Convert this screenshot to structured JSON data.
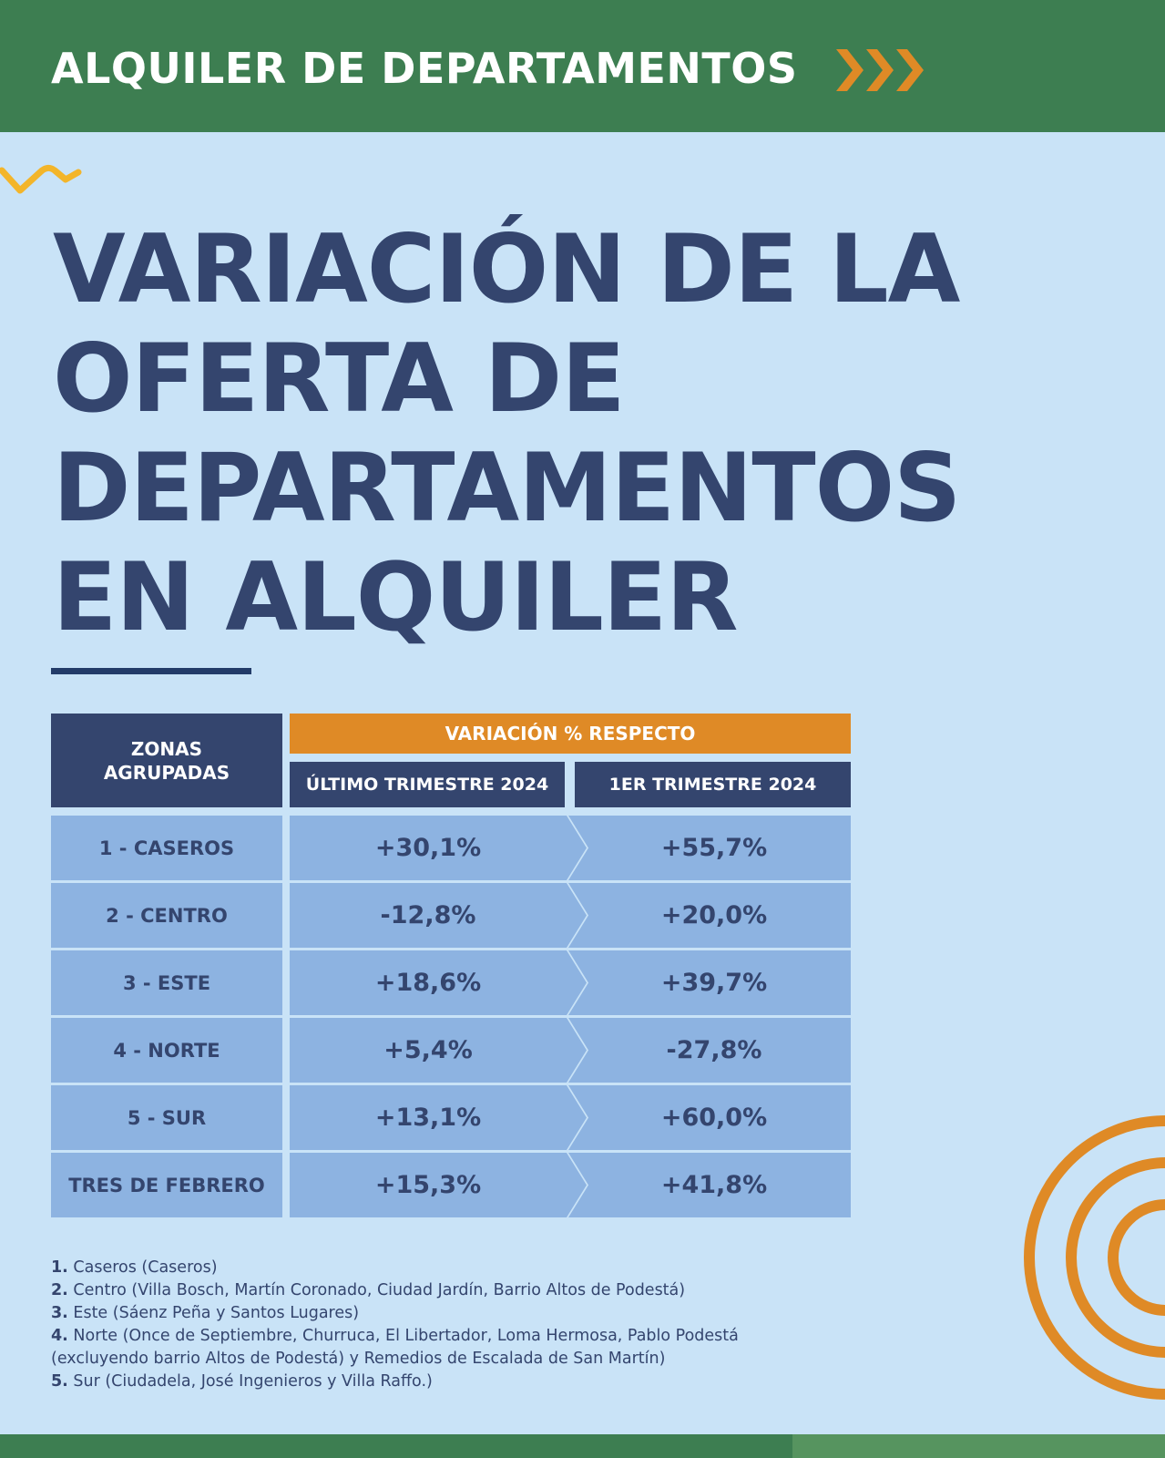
{
  "header": {
    "title": "ALQUILER DE DEPARTAMENTOS"
  },
  "title_lines": [
    "VARIACIÓN DE LA",
    "OFERTA DE",
    "DEPARTAMENTOS",
    "EN ALQUILER"
  ],
  "table": {
    "zone_header": "ZONAS\nAGRUPADAS",
    "group_header": "VARIACIÓN % RESPECTO",
    "col1_header": "ÚLTIMO TRIMESTRE 2024",
    "col2_header": "1ER TRIMESTRE 2024",
    "rows": [
      {
        "zone": "1 - CASEROS",
        "v1": "+30,1%",
        "v2": "+55,7%"
      },
      {
        "zone": "2 - CENTRO",
        "v1": "-12,8%",
        "v2": "+20,0%"
      },
      {
        "zone": "3 - ESTE",
        "v1": "+18,6%",
        "v2": "+39,7%"
      },
      {
        "zone": "4 - NORTE",
        "v1": "+5,4%",
        "v2": "-27,8%"
      },
      {
        "zone": "5 - SUR",
        "v1": "+13,1%",
        "v2": "+60,0%"
      },
      {
        "zone": "TRES DE FEBRERO",
        "v1": "+15,3%",
        "v2": "+41,8%"
      }
    ]
  },
  "notes": [
    {
      "num": "1.",
      "text": " Caseros (Caseros)"
    },
    {
      "num": "2.",
      "text": " Centro (Villa Bosch, Martín Coronado, Ciudad Jardín, Barrio Altos de Podestá)"
    },
    {
      "num": "3.",
      "text": " Este (Sáenz Peña y Santos Lugares)"
    },
    {
      "num": "4.",
      "text": " Norte (Once de Septiembre, Churruca, El Libertador, Loma Hermosa, Pablo Podestá"
    },
    {
      "num": "",
      "text": "(excluyendo barrio Altos de Podestá) y Remedios de Escalada de San Martín)"
    },
    {
      "num": "5.",
      "text": " Sur (Ciudadela, José Ingenieros y Villa Raffo.)"
    }
  ],
  "colors": {
    "header_green": "#3d7e51",
    "navy": "#34456e",
    "orange": "#df8a26",
    "cell_blue": "#8db3e1",
    "background": "#c9e3f7"
  },
  "icons": [
    "chevron-right-icon",
    "squiggle-decoration",
    "concentric-circles-decoration"
  ]
}
